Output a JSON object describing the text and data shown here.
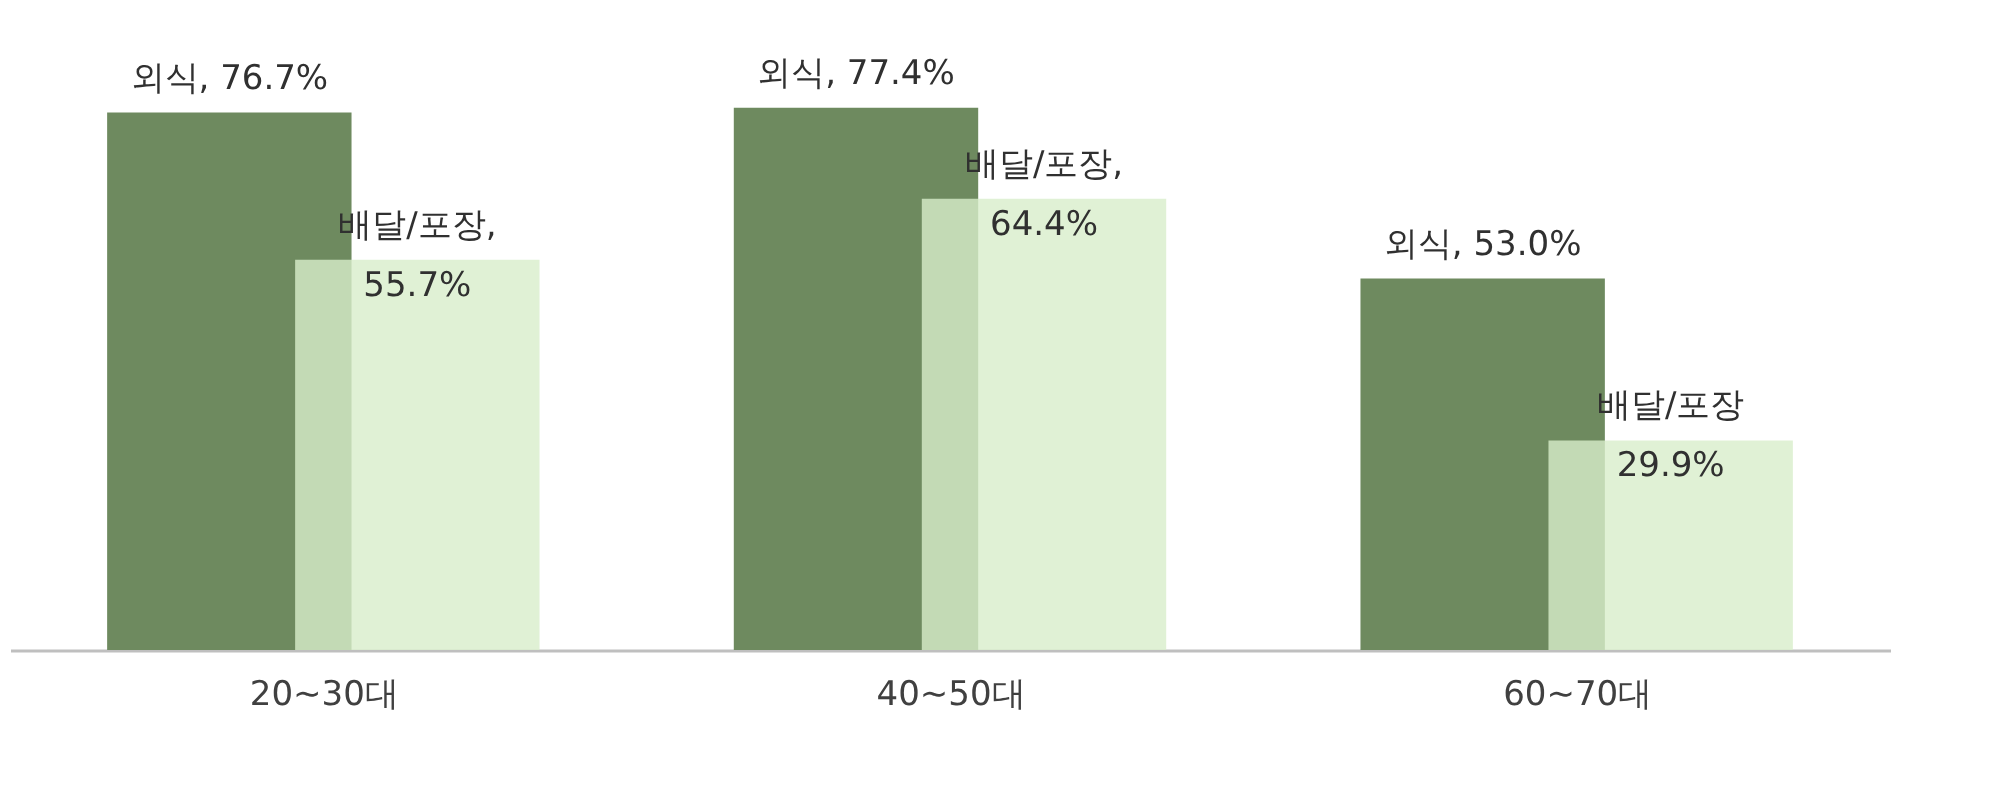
{
  "chart_data": {
    "type": "bar",
    "categories": [
      "20~30대",
      "40~50대",
      "60~70대"
    ],
    "series": [
      {
        "color": "#6e8a5f",
        "values": [
          76.7,
          77.4,
          53.0
        ],
        "value_labels": [
          "외식, 76.7%",
          "외식, 77.4%",
          "외식, 53.0%"
        ]
      },
      {
        "color": "#d8eecb",
        "values": [
          55.7,
          64.4,
          29.9
        ],
        "value_labels": [
          "배달/포장,\n55.7%",
          "배달/포장,\n64.4%",
          "배달/포장\n29.9%"
        ]
      }
    ],
    "grid": false
  }
}
